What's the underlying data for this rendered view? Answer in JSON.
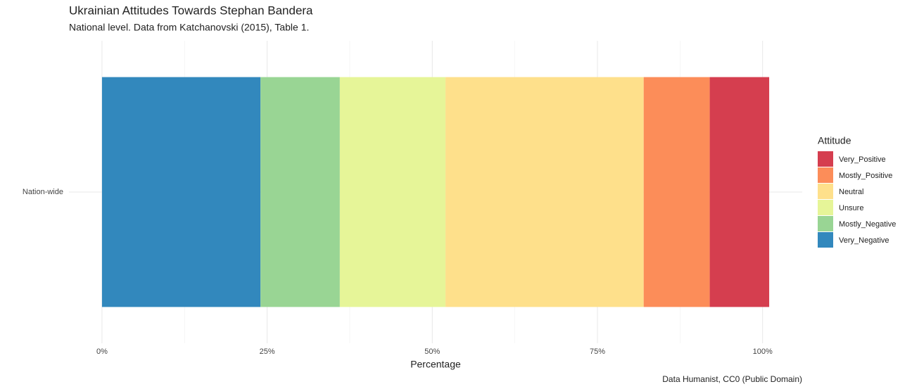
{
  "chart_data": {
    "type": "stacked_bar_horizontal",
    "title": "Ukrainian Attitudes Towards Stephan Bandera",
    "subtitle": "National level. Data from Katchanovski (2015), Table 1.",
    "caption": "Data Humanist, CC0 (Public Domain)",
    "x_label": "Percentage",
    "legend_title": "Attitude",
    "categories": [
      "Nation-wide"
    ],
    "series": [
      {
        "name": "Very_Positive",
        "color": "#d53e4f",
        "values": [
          9
        ]
      },
      {
        "name": "Mostly_Positive",
        "color": "#fc8d59",
        "values": [
          10
        ]
      },
      {
        "name": "Neutral",
        "color": "#fee08b",
        "values": [
          30
        ]
      },
      {
        "name": "Unsure",
        "color": "#e6f598",
        "values": [
          16
        ]
      },
      {
        "name": "Mostly_Negative",
        "color": "#99d594",
        "values": [
          12
        ]
      },
      {
        "name": "Very_Negative",
        "color": "#3288bd",
        "values": [
          24
        ]
      }
    ],
    "xlim": [
      -5,
      106
    ],
    "xticks": [
      {
        "value": 0,
        "label": "0%"
      },
      {
        "value": 25,
        "label": "25%"
      },
      {
        "value": 50,
        "label": "50%"
      },
      {
        "value": 75,
        "label": "75%"
      },
      {
        "value": 100,
        "label": "100%"
      }
    ],
    "xminorticks": [
      12.5,
      37.5,
      62.5,
      87.5
    ],
    "grid": true,
    "legend": "right"
  }
}
